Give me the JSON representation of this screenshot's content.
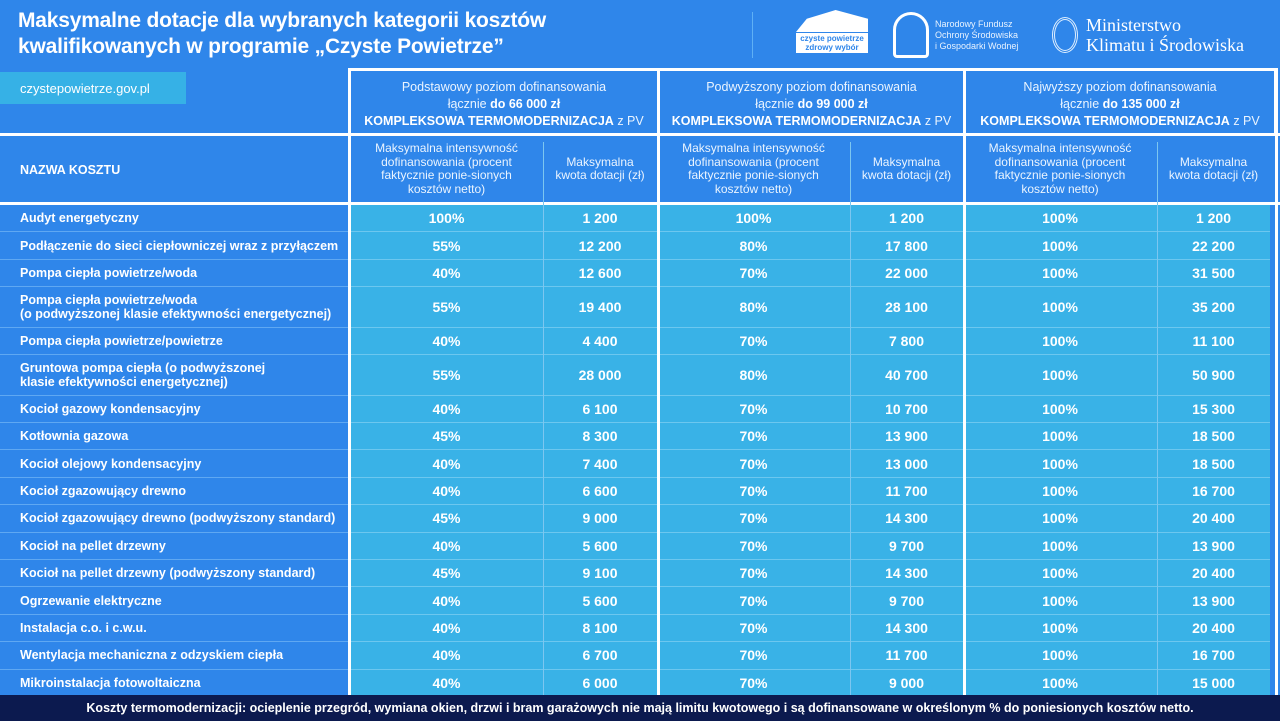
{
  "title": [
    "Maksymalne dotacje dla wybranych kategorii kosztów",
    "kwalifikowanych w programie „Czyste Powietrze”"
  ],
  "url": "czystepowietrze.gov.pl",
  "logos": {
    "czyste": [
      "czyste powietrze",
      "zdrowy wybór"
    ],
    "nfos": [
      "Narodowy Fundusz",
      "Ochrony Środowiska",
      "i Gospodarki Wodnej"
    ],
    "ministry": [
      "Ministerstwo",
      "Klimatu i Środowiska"
    ]
  },
  "groups": [
    {
      "level": "Podstawowy poziom dofinansowania",
      "prefix": "łącznie",
      "amount": "do  66 000 zł",
      "scope": "KOMPLEKSOWA TERMOMODERNIZACJA",
      "suffix": "z PV"
    },
    {
      "level": "Podwyższony poziom dofinansowania",
      "prefix": "łącznie",
      "amount": "do 99 000 zł",
      "scope": "KOMPLEKSOWA TERMOMODERNIZACJA",
      "suffix": "z PV"
    },
    {
      "level": "Najwyższy poziom dofinansowania",
      "prefix": "łącznie",
      "amount": "do 135 000 zł",
      "scope": "KOMPLEKSOWA TERMOMODERNIZACJA",
      "suffix": "z PV"
    }
  ],
  "columns": {
    "name": "NAZWA KOSZTU",
    "pct": "Maksymalna intensywność dofinansowania (procent faktycznie ponie-sionych kosztów netto)",
    "amt": "Maksymalna kwota dotacji (zł)"
  },
  "rows": [
    {
      "name": "Audyt energetyczny",
      "v": [
        "100%",
        "1 200",
        "100%",
        "1 200",
        "100%",
        "1 200"
      ]
    },
    {
      "name": "Podłączenie do sieci ciepłowniczej wraz z przyłączem",
      "v": [
        "55%",
        "12 200",
        "80%",
        "17 800",
        "100%",
        "22 200"
      ]
    },
    {
      "name": "Pompa ciepła powietrze/woda",
      "v": [
        "40%",
        "12 600",
        "70%",
        "22 000",
        "100%",
        "31 500"
      ]
    },
    {
      "name": "Pompa ciepła powietrze/woda\n(o podwyższonej klasie efektywności energetycznej)",
      "v": [
        "55%",
        "19 400",
        "80%",
        "28 100",
        "100%",
        "35 200"
      ]
    },
    {
      "name": "Pompa ciepła powietrze/powietrze",
      "v": [
        "40%",
        "4 400",
        "70%",
        "7 800",
        "100%",
        "11 100"
      ]
    },
    {
      "name": "Gruntowa pompa ciepła (o podwyższonej\nklasie efektywności energetycznej)",
      "v": [
        "55%",
        "28 000",
        "80%",
        "40 700",
        "100%",
        "50 900"
      ]
    },
    {
      "name": "Kocioł gazowy kondensacyjny",
      "v": [
        "40%",
        "6 100",
        "70%",
        "10 700",
        "100%",
        "15 300"
      ]
    },
    {
      "name": "Kotłownia gazowa",
      "v": [
        "45%",
        "8 300",
        "70%",
        "13 900",
        "100%",
        "18 500"
      ]
    },
    {
      "name": "Kocioł olejowy kondensacyjny",
      "v": [
        "40%",
        "7 400",
        "70%",
        "13 000",
        "100%",
        "18 500"
      ]
    },
    {
      "name": "Kocioł zgazowujący drewno",
      "v": [
        "40%",
        "6 600",
        "70%",
        "11 700",
        "100%",
        "16 700"
      ]
    },
    {
      "name": "Kocioł zgazowujący drewno (podwyższony standard)",
      "v": [
        "45%",
        "9 000",
        "70%",
        "14 300",
        "100%",
        "20 400"
      ]
    },
    {
      "name": "Kocioł na pellet drzewny",
      "v": [
        "40%",
        "5 600",
        "70%",
        "9 700",
        "100%",
        "13 900"
      ]
    },
    {
      "name": "Kocioł na pellet drzewny (podwyższony standard)",
      "v": [
        "45%",
        "9 100",
        "70%",
        "14 300",
        "100%",
        "20 400"
      ]
    },
    {
      "name": "Ogrzewanie elektryczne",
      "v": [
        "40%",
        "5 600",
        "70%",
        "9 700",
        "100%",
        "13 900"
      ]
    },
    {
      "name": "Instalacja c.o. i c.w.u.",
      "v": [
        "40%",
        "8 100",
        "70%",
        "14 300",
        "100%",
        "20 400"
      ]
    },
    {
      "name": "Wentylacja mechaniczna z odzyskiem ciepła",
      "v": [
        "40%",
        "6 700",
        "70%",
        "11 700",
        "100%",
        "16 700"
      ]
    },
    {
      "name": "Mikroinstalacja fotowoltaiczna",
      "v": [
        "40%",
        "6 000",
        "70%",
        "9 000",
        "100%",
        "15 000"
      ]
    }
  ],
  "footer": "Koszty  termomodernizacji: ocieplenie przegród, wymiana okien, drzwi i bram garażowych nie mają limitu kwotowego i są dofinansowane w określonym % do poniesionych kosztów netto.",
  "colors": {
    "background": "#2f86ea",
    "cells": "#39b2e7",
    "footer": "#0c1a4f"
  }
}
